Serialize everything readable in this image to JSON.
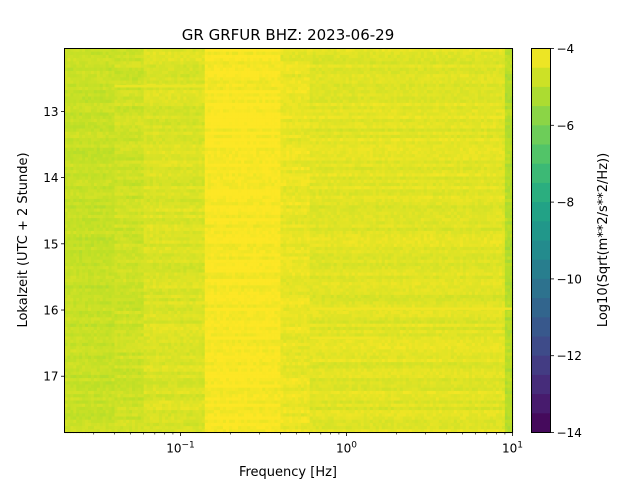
{
  "chart_data": {
    "type": "heatmap",
    "title": "GR GRFUR  BHZ: 2023-06-29",
    "xlabel": "Frequency [Hz]",
    "ylabel": "Lokalzeit (UTC + 2 Stunde)",
    "x_scale": "log",
    "xlim": [
      0.02,
      10
    ],
    "ylim": [
      17.85,
      12.05
    ],
    "y_ticks": [
      13,
      14,
      15,
      16,
      17
    ],
    "x_ticks": [
      {
        "value": 0.1,
        "base": "10",
        "exp": "−1"
      },
      {
        "value": 1,
        "base": "10",
        "exp": "0"
      },
      {
        "value": 10,
        "base": "10",
        "exp": "1"
      }
    ],
    "colorbar": {
      "label": "Log10(Sqrt(m**2/s**2/Hz))",
      "colormap": "viridis",
      "range": [
        -14,
        -4
      ],
      "ticks": [
        -4,
        -6,
        -8,
        -10,
        -12,
        -14
      ],
      "tick_labels": [
        "−4",
        "−6",
        "−8",
        "−10",
        "−12",
        "−14"
      ]
    },
    "frequency_bands": [
      {
        "f_min": 0.02,
        "f_max": 0.04,
        "level": -4.85
      },
      {
        "f_min": 0.04,
        "f_max": 0.06,
        "level": -4.75
      },
      {
        "f_min": 0.06,
        "f_max": 0.14,
        "level": -4.55
      },
      {
        "f_min": 0.14,
        "f_max": 0.4,
        "level": -4.05
      },
      {
        "f_min": 0.4,
        "f_max": 0.6,
        "level": -4.3
      },
      {
        "f_min": 0.6,
        "f_max": 9.0,
        "level": -4.45
      },
      {
        "f_min": 9.0,
        "f_max": 10,
        "level": -5.1
      }
    ],
    "features": [
      {
        "kind": "line",
        "time": 15.98,
        "f_min": 0.6,
        "f_max": 10,
        "level": -4.2
      },
      {
        "kind": "line",
        "time": 16.42,
        "f_min": 0.6,
        "f_max": 1.5,
        "level": -4.2
      },
      {
        "kind": "line",
        "time": 12.62,
        "f_min": 0.04,
        "f_max": 0.14,
        "level": -4.3
      }
    ]
  }
}
